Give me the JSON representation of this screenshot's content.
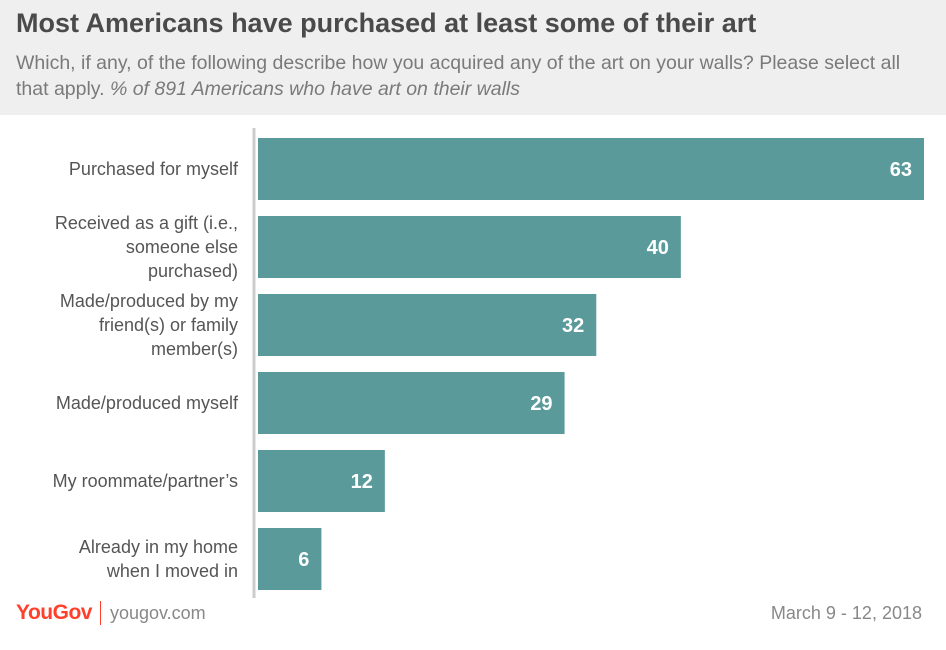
{
  "header": {
    "title": "Most Americans have purchased at least some of their art",
    "subtitle": "Which, if any, of the following describe how you acquired any of the art on your walls? Please select all that apply.",
    "note": "% of 891 Americans who have art on their walls"
  },
  "chart_data": {
    "type": "bar",
    "orientation": "horizontal",
    "categories": [
      [
        "Purchased for myself"
      ],
      [
        "Received as a gift (i.e.,",
        "someone else",
        "purchased)"
      ],
      [
        "Made/produced by my",
        "friend(s) or family",
        "member(s)"
      ],
      [
        "Made/produced myself"
      ],
      [
        "My roommate/partner’s"
      ],
      [
        "Already in my home",
        "when I moved in"
      ]
    ],
    "values": [
      63,
      40,
      32,
      29,
      12,
      6
    ],
    "xlim": [
      0,
      63
    ],
    "bar_color": "#5b9a9b",
    "axis_color": "#cccccc",
    "grid": false
  },
  "footer": {
    "logo": "YouGov",
    "site": "yougov.com",
    "date": "March 9 - 12, 2018"
  },
  "colors": {
    "header_bg": "#efefef",
    "title": "#4a4a4a",
    "logo": "#ff412c"
  }
}
